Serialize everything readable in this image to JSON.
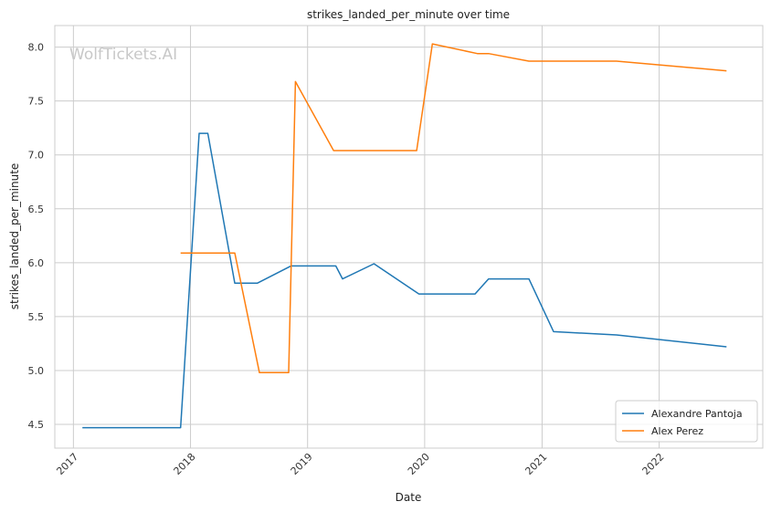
{
  "chart_data": {
    "type": "line",
    "title": "strikes_landed_per_minute over time",
    "xlabel": "Date",
    "ylabel": "strikes_landed_per_minute",
    "watermark": "WolfTickets.AI",
    "xlim": [
      "2016-11-04",
      "2022-11-20"
    ],
    "ylim": [
      4.28,
      8.2
    ],
    "x_ticks": [
      "2017-01-01",
      "2018-01-01",
      "2019-01-01",
      "2020-01-01",
      "2021-01-01",
      "2022-01-01"
    ],
    "x_tick_labels": [
      "2017",
      "2018",
      "2019",
      "2020",
      "2021",
      "2022"
    ],
    "y_ticks": [
      4.5,
      5.0,
      5.5,
      6.0,
      6.5,
      7.0,
      7.5,
      8.0
    ],
    "y_tick_labels": [
      "4.5",
      "5.0",
      "5.5",
      "6.0",
      "6.5",
      "7.0",
      "7.5",
      "8.0"
    ],
    "grid": true,
    "legend_position": "bottom-right",
    "series": [
      {
        "name": "Alexandre Pantoja",
        "color": "#1f77b4",
        "points": [
          {
            "x": "2017-01-29",
            "y": 4.47
          },
          {
            "x": "2017-12-01",
            "y": 4.47
          },
          {
            "x": "2018-01-28",
            "y": 7.2
          },
          {
            "x": "2018-02-24",
            "y": 7.2
          },
          {
            "x": "2018-05-19",
            "y": 5.81
          },
          {
            "x": "2018-07-28",
            "y": 5.81
          },
          {
            "x": "2018-11-10",
            "y": 5.97
          },
          {
            "x": "2019-03-30",
            "y": 5.97
          },
          {
            "x": "2019-04-20",
            "y": 5.85
          },
          {
            "x": "2019-07-27",
            "y": 5.99
          },
          {
            "x": "2019-12-14",
            "y": 5.71
          },
          {
            "x": "2020-06-06",
            "y": 5.71
          },
          {
            "x": "2020-07-18",
            "y": 5.85
          },
          {
            "x": "2020-11-21",
            "y": 5.85
          },
          {
            "x": "2021-02-06",
            "y": 5.36
          },
          {
            "x": "2021-08-21",
            "y": 5.33
          },
          {
            "x": "2022-07-30",
            "y": 5.22
          }
        ]
      },
      {
        "name": "Alex Perez",
        "color": "#ff7f0e",
        "points": [
          {
            "x": "2017-12-01",
            "y": 6.09
          },
          {
            "x": "2018-05-19",
            "y": 6.09
          },
          {
            "x": "2018-08-04",
            "y": 4.98
          },
          {
            "x": "2018-11-03",
            "y": 4.98
          },
          {
            "x": "2018-11-24",
            "y": 7.68
          },
          {
            "x": "2019-03-23",
            "y": 7.04
          },
          {
            "x": "2019-12-07",
            "y": 7.04
          },
          {
            "x": "2020-01-25",
            "y": 8.03
          },
          {
            "x": "2020-06-13",
            "y": 7.94
          },
          {
            "x": "2020-07-18",
            "y": 7.94
          },
          {
            "x": "2020-11-21",
            "y": 7.87
          },
          {
            "x": "2021-08-21",
            "y": 7.87
          },
          {
            "x": "2022-07-30",
            "y": 7.78
          }
        ]
      }
    ]
  }
}
